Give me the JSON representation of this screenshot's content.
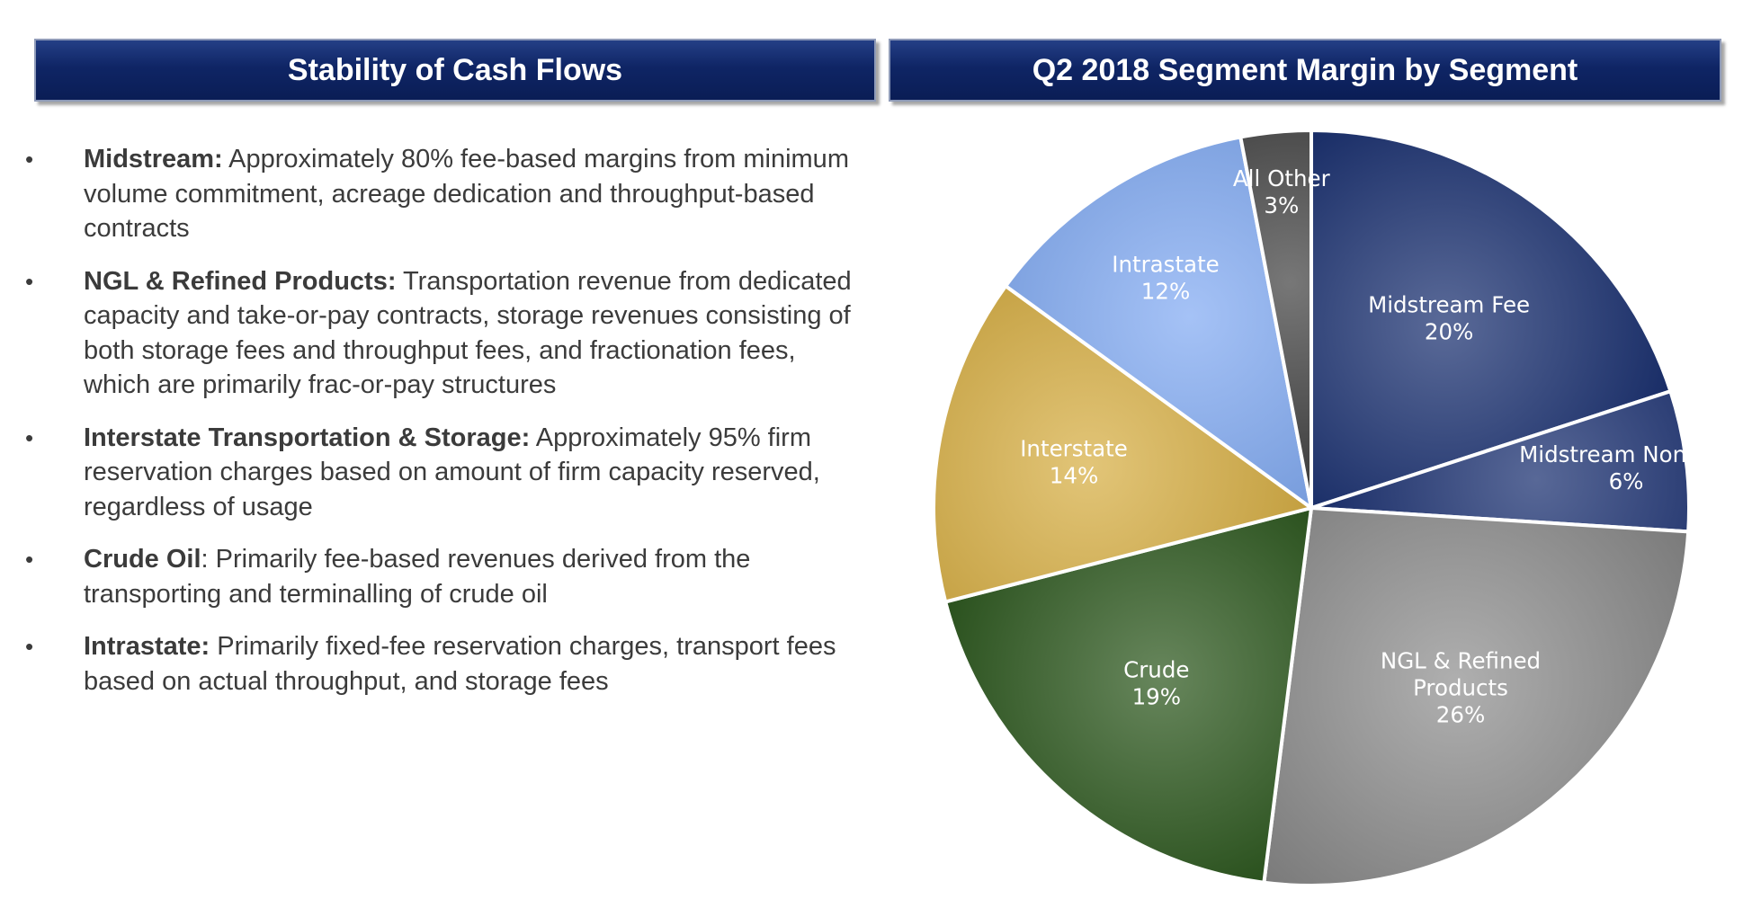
{
  "left_panel": {
    "title": "Stability of Cash Flows",
    "bullets": [
      {
        "head": "Midstream:",
        "text": " Approximately 80% fee-based margins from minimum volume commitment, acreage dedication and throughput-based contracts"
      },
      {
        "head": "NGL & Refined Products:",
        "text": " Transportation revenue from dedicated capacity and take-or-pay contracts, storage revenues consisting of both storage fees and throughput fees, and fractionation fees, which are primarily frac-or-pay structures"
      },
      {
        "head": "Interstate Transportation & Storage:",
        "text": " Approximately 95% firm reservation charges based on amount of firm capacity reserved, regardless of usage"
      },
      {
        "head": "Crude Oil",
        "text": ": Primarily fee-based revenues derived from the transporting and terminalling of crude oil"
      },
      {
        "head": "Intrastate:",
        "text": " Primarily fixed-fee reservation charges, transport fees based on actual throughput, and storage fees"
      }
    ]
  },
  "chart_data": {
    "type": "pie",
    "title": "Q2 2018 Segment Margin by Segment",
    "slices": [
      {
        "label": "Midstream Fee",
        "value": 20,
        "value_label": "20%",
        "color": "#0c2468"
      },
      {
        "label": "Midstream Non-Fee",
        "value": 6,
        "value_label": "6%",
        "color": "#0a2166"
      },
      {
        "label": "NGL & Refined Products",
        "value": 26,
        "value_label": "26%",
        "color": "#8a8a8a"
      },
      {
        "label": "Crude",
        "value": 19,
        "value_label": "19%",
        "color": "#1f4d10"
      },
      {
        "label": "Interstate",
        "value": 14,
        "value_label": "14%",
        "color": "#d4a938"
      },
      {
        "label": "Intrastate",
        "value": 12,
        "value_label": "12%",
        "color": "#7aa6f2"
      },
      {
        "label": "All Other",
        "value": 3,
        "value_label": "3%",
        "color": "#2e2e2e"
      }
    ]
  }
}
